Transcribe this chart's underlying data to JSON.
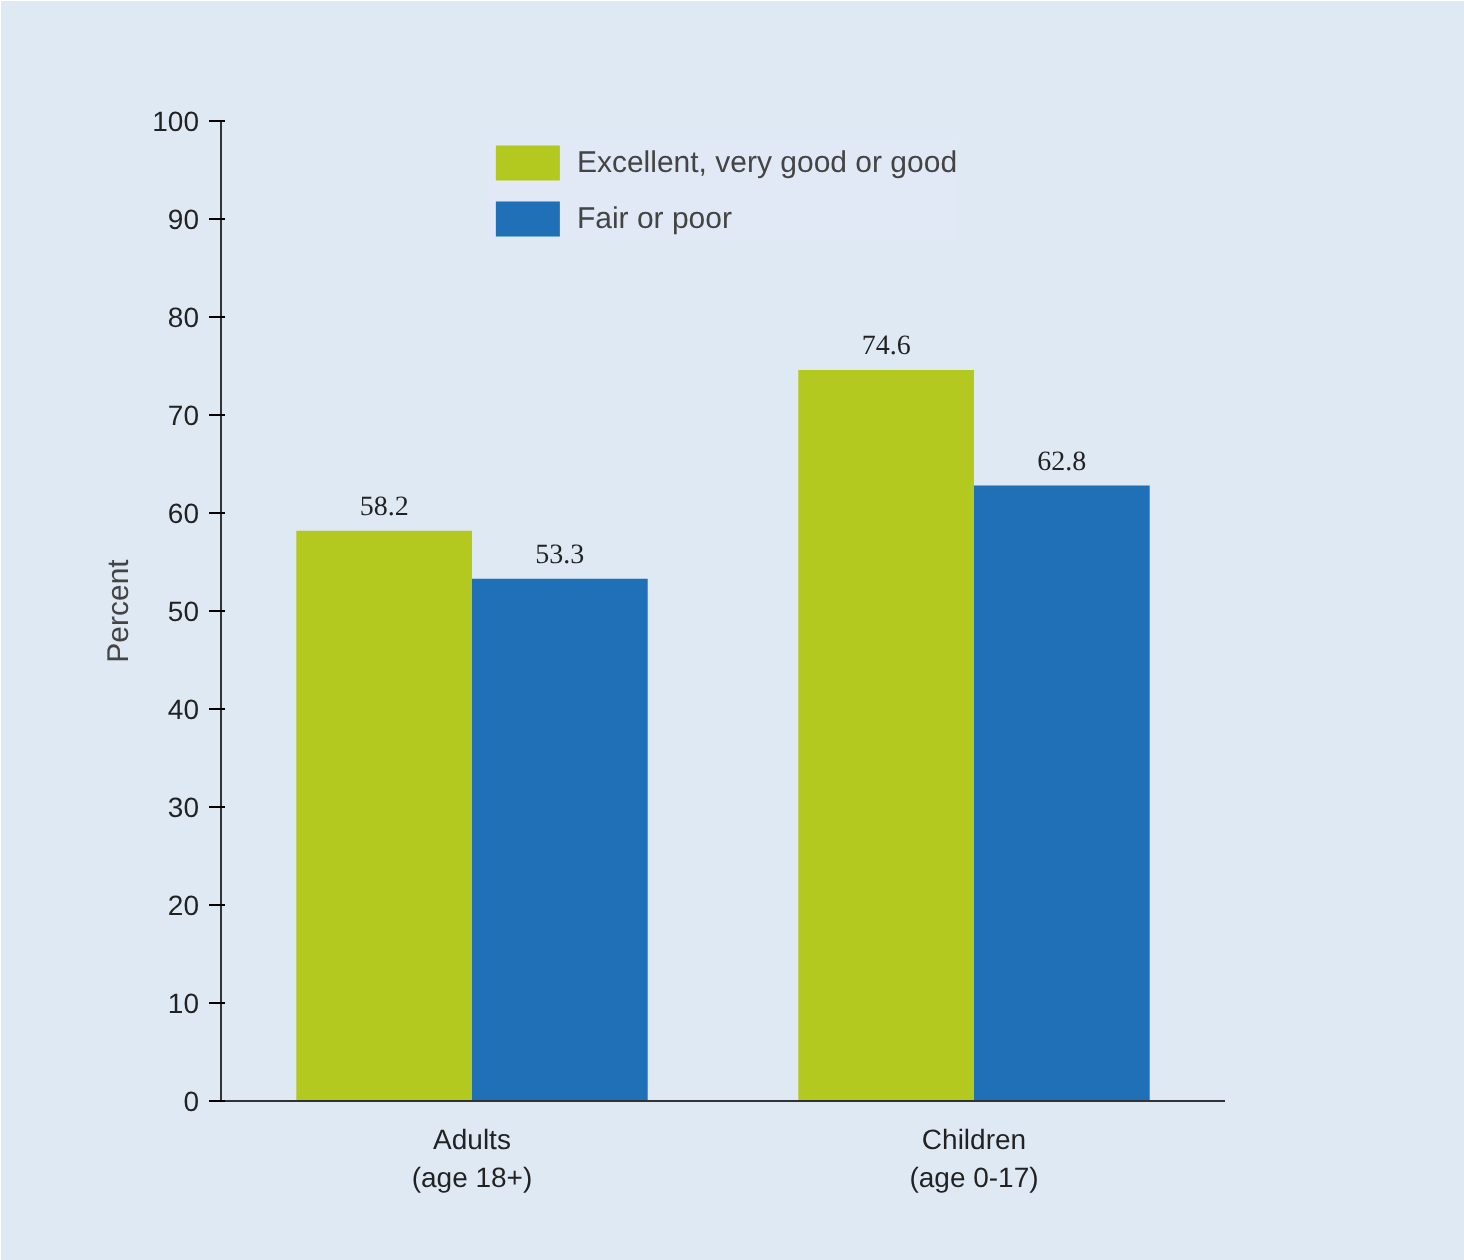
{
  "chart_data": {
    "type": "bar",
    "ylabel": "Percent",
    "categories": [
      "Adults\n(age 18+)",
      "Children\n(age 0-17)"
    ],
    "series": [
      {
        "name": "Excellent, very good or good",
        "color": "#b3c91f",
        "values": [
          58.2,
          74.6
        ]
      },
      {
        "name": "Fair or poor",
        "color": "#1f70b6",
        "values": [
          53.3,
          62.8
        ]
      }
    ],
    "ylim": [
      0,
      100
    ],
    "yticks": [
      0,
      10,
      20,
      30,
      40,
      50,
      60,
      70,
      80,
      90,
      100
    ],
    "data_labels": true,
    "legend": "top",
    "grid": false
  }
}
